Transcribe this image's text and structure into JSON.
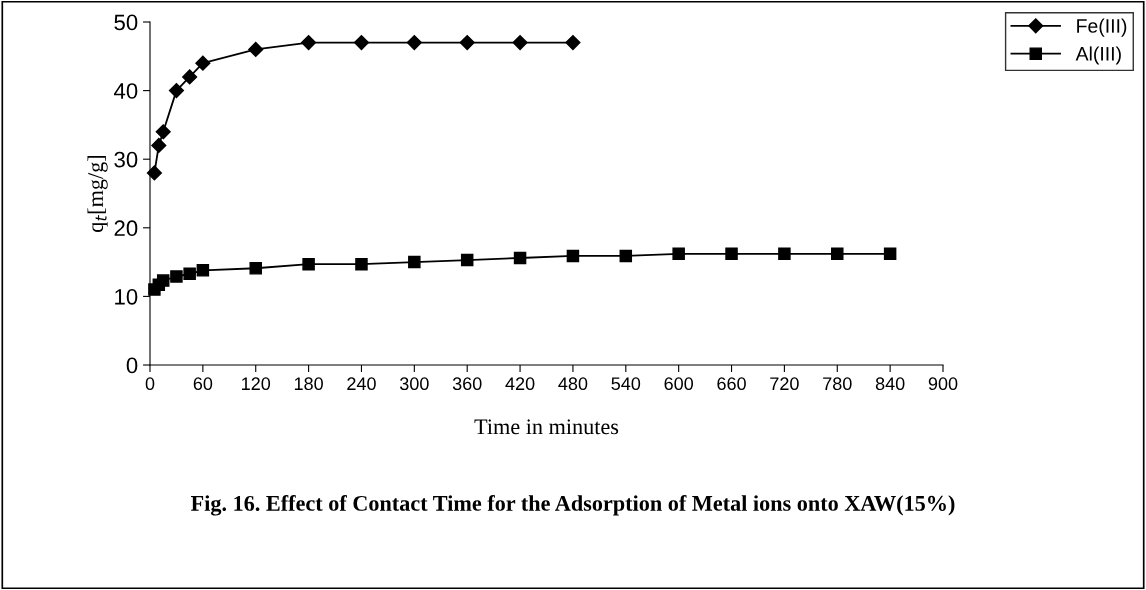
{
  "chart_data": {
    "type": "line",
    "title": "Fig. 16. Effect of Contact Time for the Adsorption of Metal ions onto XAW(15%)",
    "xlabel": "Time in minutes",
    "ylabel": "q$_{t}$[mg/g]",
    "series": [
      {
        "name": "Fe(III)",
        "color": "#000000",
        "marker": "diamond",
        "x": [
          5,
          10,
          15,
          30,
          45,
          60,
          120,
          180,
          240,
          300,
          360,
          420,
          480
        ],
        "values": [
          28,
          32,
          34,
          40,
          42,
          44,
          46,
          47,
          47,
          47,
          47,
          47,
          47
        ]
      },
      {
        "name": "Al(III)",
        "color": "#000000",
        "marker": "square",
        "x": [
          5,
          10,
          15,
          30,
          45,
          60,
          120,
          180,
          240,
          300,
          360,
          420,
          480,
          540,
          600,
          660,
          720,
          780,
          840
        ],
        "values": [
          11,
          11.7,
          12.3,
          12.9,
          13.3,
          13.8,
          14.1,
          14.7,
          14.7,
          15,
          15.3,
          15.6,
          15.9,
          15.9,
          16.2,
          16.2,
          16.2,
          16.2,
          16.2
        ]
      }
    ],
    "xlim": [
      0,
      900
    ],
    "xticks": [
      0,
      60,
      120,
      180,
      240,
      300,
      360,
      420,
      480,
      540,
      600,
      660,
      720,
      780,
      840,
      900
    ],
    "ylim": [
      0,
      50
    ],
    "yticks": [
      0,
      10,
      20,
      30,
      40,
      50
    ],
    "grid": false,
    "legend": "top right",
    "line_style": "solid"
  }
}
